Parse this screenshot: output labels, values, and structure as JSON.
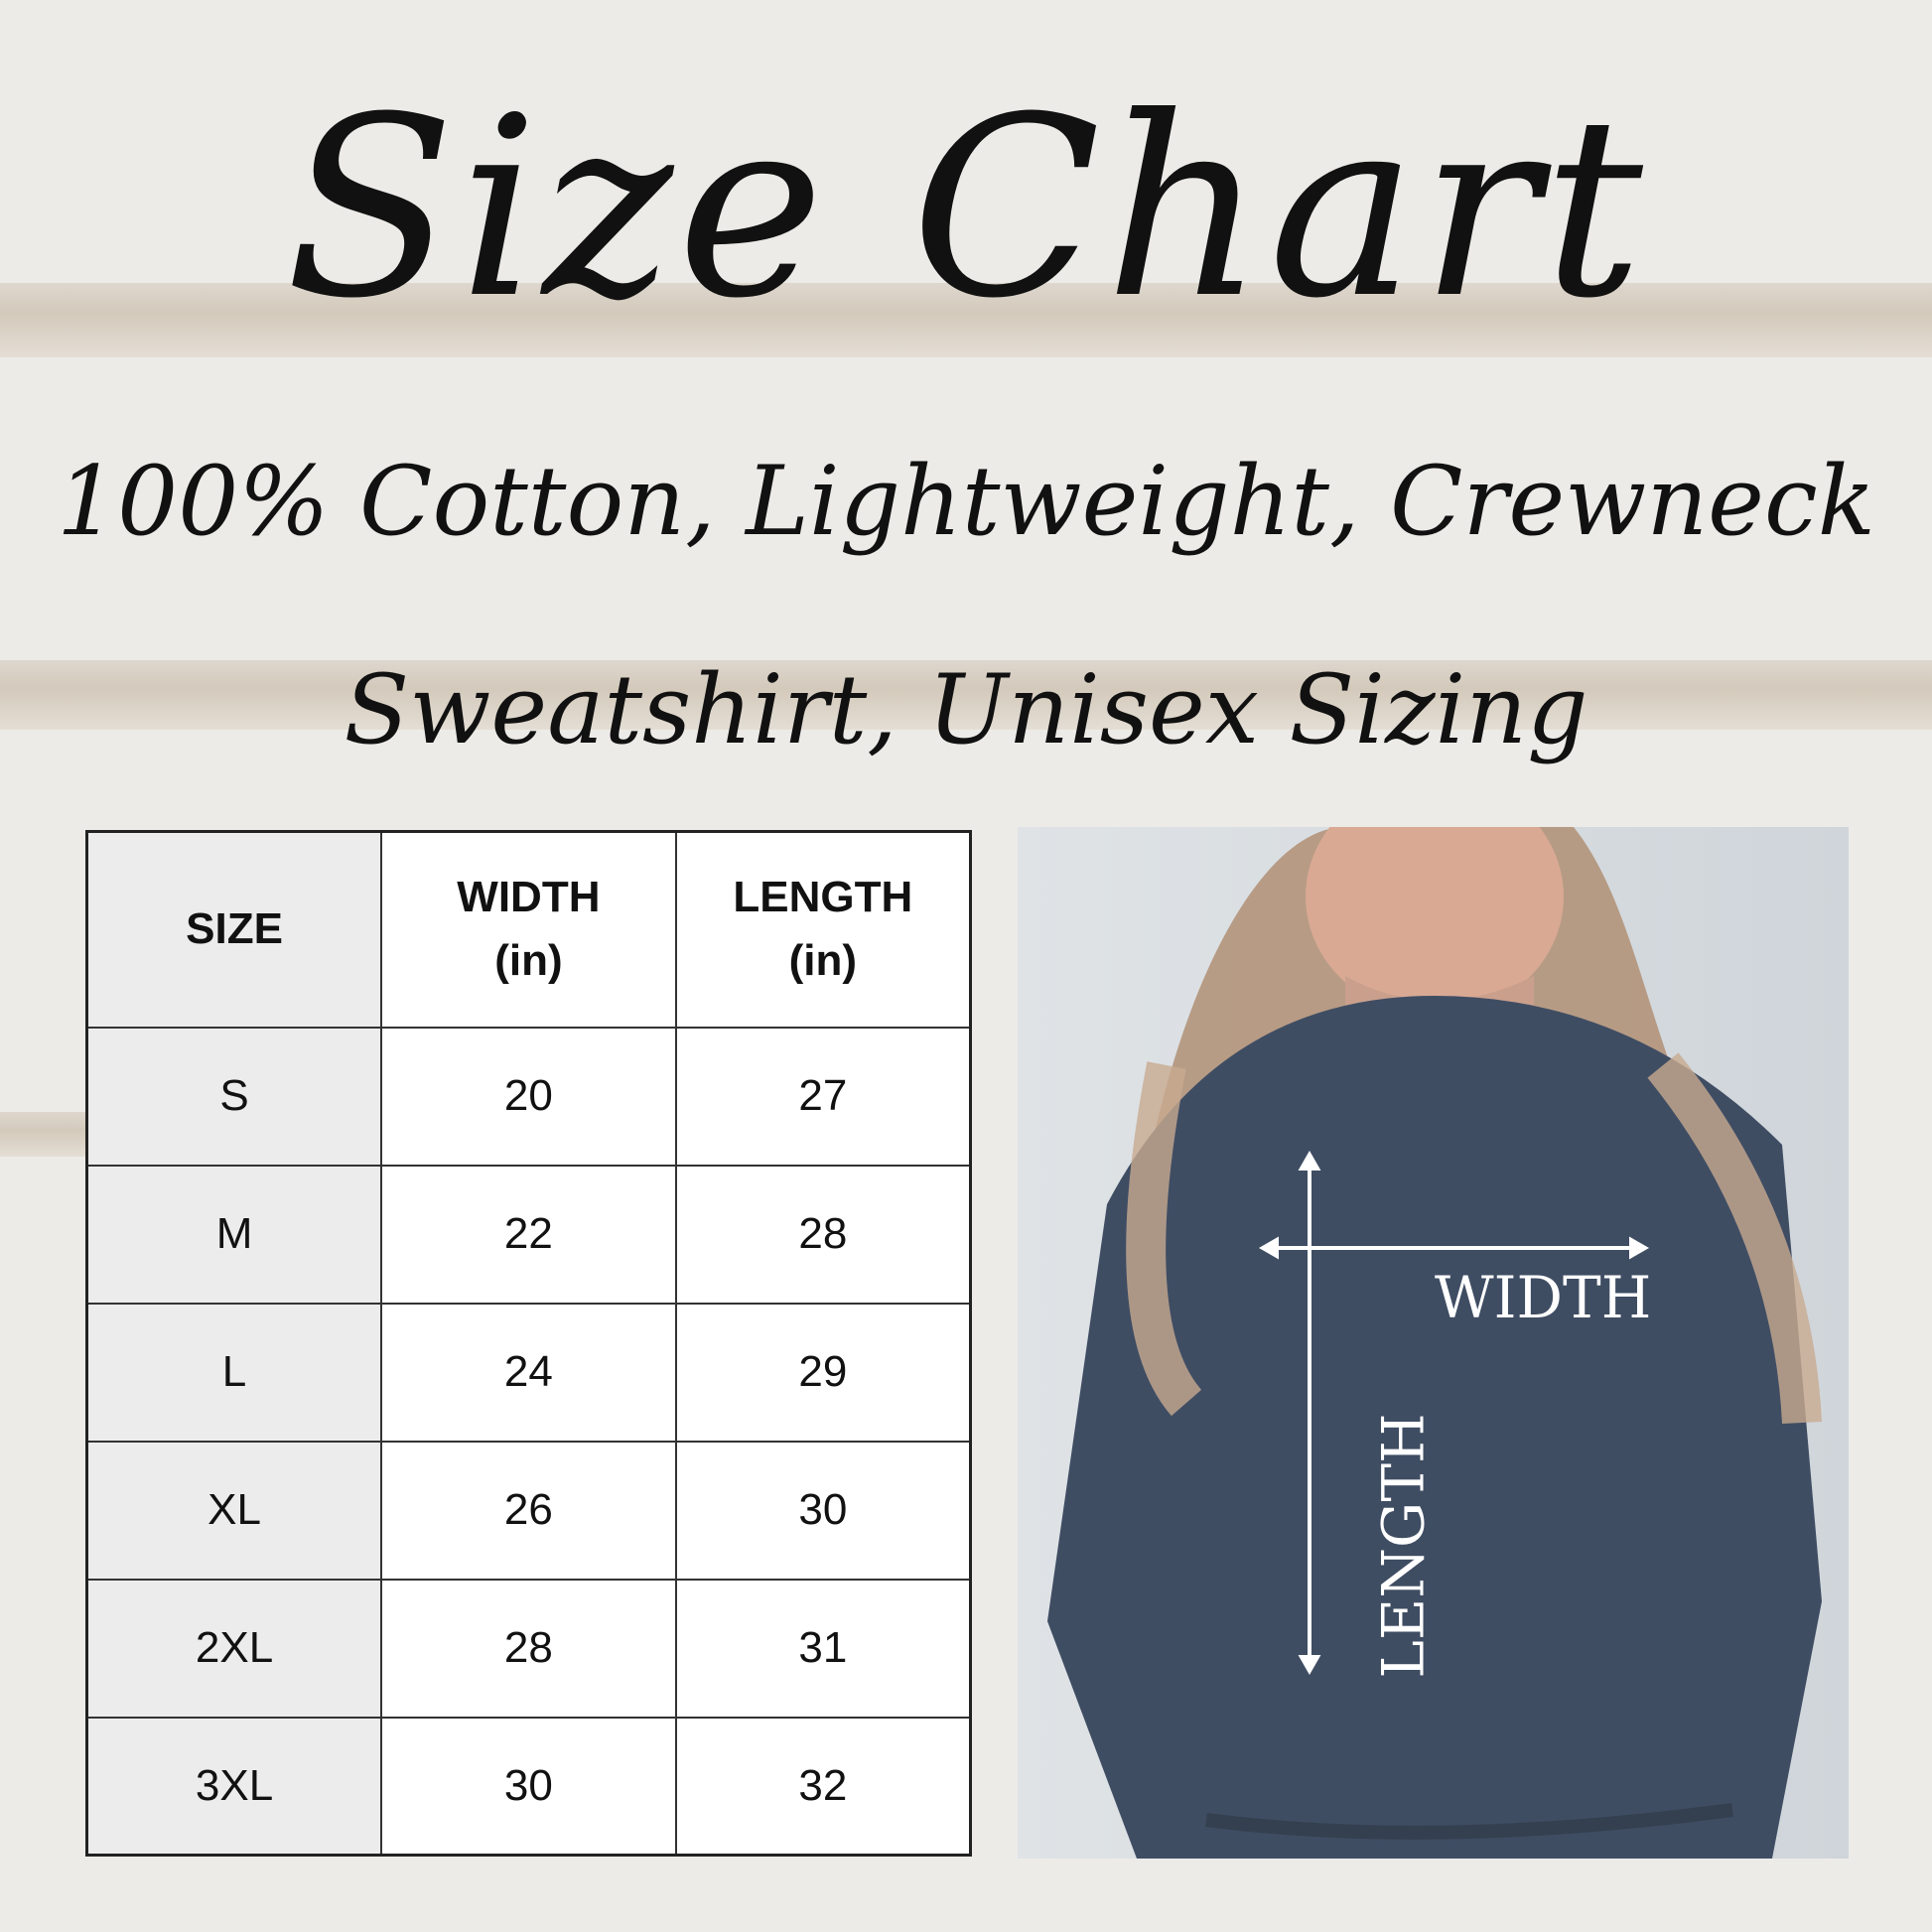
{
  "title": "Size Chart",
  "subtitle_line1": "100% Cotton, Lightweight, Crewneck",
  "subtitle_line2": "Sweatshirt, Unisex Sizing",
  "table": {
    "headers": [
      {
        "line1": "SIZE",
        "line2": ""
      },
      {
        "line1": "WIDTH",
        "line2": "(in)"
      },
      {
        "line1": "LENGTH",
        "line2": "(in)"
      }
    ],
    "rows": [
      [
        "S",
        "20",
        "27"
      ],
      [
        "M",
        "22",
        "28"
      ],
      [
        "L",
        "24",
        "29"
      ],
      [
        "XL",
        "26",
        "30"
      ],
      [
        "2XL",
        "28",
        "31"
      ],
      [
        "3XL",
        "30",
        "32"
      ]
    ]
  },
  "photo": {
    "width_label": "WIDTH",
    "length_label": "LENGTH",
    "sweatshirt_color": "#3f4d63"
  }
}
